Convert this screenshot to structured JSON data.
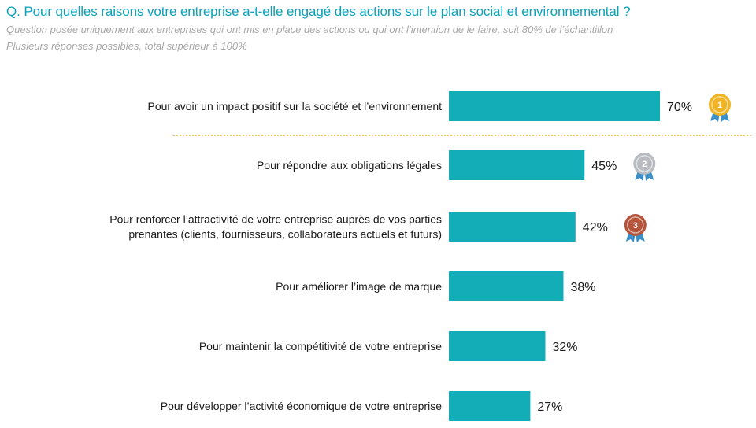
{
  "header": {
    "question": "Q. Pour quelles raisons votre entreprise a-t-elle engagé des actions sur le plan social et environnemental ?",
    "note_1": "Question posée uniquement aux entreprises qui ont mis en place des actions ou qui ont l’intention de le faire, soit 80% de l’échantillon",
    "note_2": "Plusieurs réponses possibles, total supérieur à 100%"
  },
  "colors": {
    "bar": "#13adb8",
    "title": "#0aa2b8",
    "separator": "#f2c14e",
    "gold": "#f0b323",
    "silver": "#b8bcc1",
    "bronze": "#b5543a",
    "ribbon": "#3a8fc9"
  },
  "chart_data": {
    "type": "bar",
    "orientation": "horizontal",
    "unit": "%",
    "categories": [
      [
        "Pour avoir un impact positif sur la société et l’environnement"
      ],
      [
        "Pour répondre aux obligations légales"
      ],
      [
        "Pour renforcer l’attractivité de votre entreprise auprès de vos parties",
        "prenantes (clients, fournisseurs, collaborateurs actuels et futurs)"
      ],
      [
        "Pour améliorer l’image de marque"
      ],
      [
        "Pour maintenir la compétitivité de votre entreprise"
      ],
      [
        "Pour développer l’activité économique de votre entreprise"
      ]
    ],
    "values": [
      70,
      45,
      42,
      38,
      32,
      27
    ],
    "value_labels": [
      "70%",
      "45%",
      "42%",
      "38%",
      "32%",
      "27%"
    ],
    "medals": [
      {
        "rank": 1,
        "label": "1",
        "color": "gold"
      },
      {
        "rank": 2,
        "label": "2",
        "color": "silver"
      },
      {
        "rank": 3,
        "label": "3",
        "color": "bronze"
      }
    ],
    "separator_after_rank": 1,
    "xlim": [
      0,
      100
    ]
  }
}
